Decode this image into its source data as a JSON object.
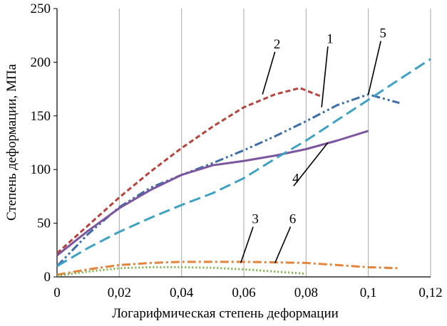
{
  "chart_data": {
    "type": "line",
    "title": "",
    "xlabel": "Логарифмическая степень деформации",
    "ylabel": "Степень деформации, МПа",
    "xlim": [
      0,
      0.12
    ],
    "ylim": [
      0,
      250
    ],
    "x_ticks": [
      "0",
      "0,02",
      "0,04",
      "0,06",
      "0,08",
      "0,1",
      "0,12"
    ],
    "y_ticks": [
      "0",
      "50",
      "100",
      "150",
      "200",
      "250"
    ],
    "grid": "vertical",
    "legend": "none",
    "series": [
      {
        "label": "1",
        "color": "#3D6FA5",
        "dash": "dashdotdot",
        "x": [
          0,
          0.01,
          0.02,
          0.03,
          0.04,
          0.05,
          0.06,
          0.07,
          0.08,
          0.09,
          0.1,
          0.11
        ],
        "y": [
          10,
          40,
          65,
          83,
          95,
          106,
          118,
          131,
          145,
          160,
          170,
          162
        ]
      },
      {
        "label": "2",
        "color": "#B5433E",
        "dash": "dash",
        "x": [
          0,
          0.01,
          0.02,
          0.03,
          0.04,
          0.05,
          0.06,
          0.07,
          0.078,
          0.085
        ],
        "y": [
          22,
          48,
          74,
          98,
          120,
          140,
          158,
          170,
          176,
          168
        ]
      },
      {
        "label": "3",
        "color": "#E3843C",
        "dash": "dashdot",
        "x": [
          0,
          0.01,
          0.02,
          0.03,
          0.04,
          0.05,
          0.06,
          0.07,
          0.08,
          0.09,
          0.1,
          0.11
        ],
        "y": [
          2,
          7,
          11,
          13,
          14,
          14,
          14,
          13.5,
          13,
          11,
          9,
          8
        ]
      },
      {
        "label": "4",
        "color": "#7B559E",
        "dash": "solid",
        "x": [
          0,
          0.01,
          0.02,
          0.03,
          0.04,
          0.05,
          0.06,
          0.07,
          0.08,
          0.09,
          0.1
        ],
        "y": [
          20,
          43,
          64,
          81,
          95,
          104,
          108,
          113,
          119,
          127,
          136
        ]
      },
      {
        "label": "5",
        "color": "#3FA2C3",
        "dash": "longdash",
        "x": [
          0,
          0.01,
          0.02,
          0.03,
          0.04,
          0.05,
          0.06,
          0.07,
          0.08,
          0.09,
          0.1,
          0.11,
          0.12
        ],
        "y": [
          10,
          27,
          42,
          55,
          67,
          78,
          92,
          110,
          127,
          146,
          165,
          184,
          203
        ]
      },
      {
        "label": "6",
        "color": "#7FB24A",
        "dash": "dot",
        "x": [
          0,
          0.01,
          0.02,
          0.03,
          0.04,
          0.05,
          0.06,
          0.07,
          0.08
        ],
        "y": [
          1,
          5,
          8,
          9,
          9,
          8.5,
          7,
          5,
          3
        ]
      }
    ],
    "callouts": [
      {
        "text": "1",
        "label_x": 0.087,
        "label_y": 218,
        "target_x": 0.085,
        "target_y": 158
      },
      {
        "text": "2",
        "label_x": 0.07,
        "label_y": 213,
        "target_x": 0.066,
        "target_y": 170
      },
      {
        "text": "3",
        "label_x": 0.063,
        "label_y": 50,
        "target_x": 0.059,
        "target_y": 13
      },
      {
        "text": "4",
        "label_x": 0.076,
        "label_y": 88,
        "target_x": 0.087,
        "target_y": 125
      },
      {
        "text": "5",
        "label_x": 0.104,
        "label_y": 223,
        "target_x": 0.1,
        "target_y": 170
      },
      {
        "text": "6",
        "label_x": 0.075,
        "label_y": 50,
        "target_x": 0.07,
        "target_y": 13
      }
    ]
  }
}
